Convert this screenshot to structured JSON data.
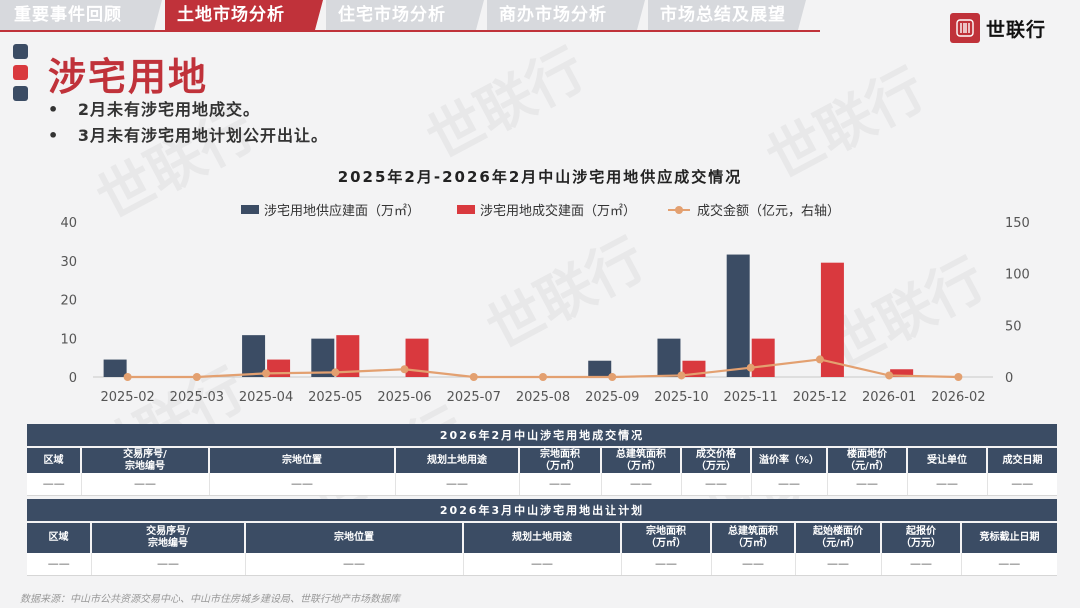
{
  "nav": {
    "tabs": [
      {
        "label": "重要事件回顾",
        "active": false
      },
      {
        "label": "土地市场分析",
        "active": true
      },
      {
        "label": "住宅市场分析",
        "active": false
      },
      {
        "label": "商办市场分析",
        "active": false
      },
      {
        "label": "市场总结及展望",
        "active": false
      }
    ],
    "accent_color": "#c0323a",
    "inactive_color": "#d7d9dd"
  },
  "logo": {
    "text": "世联行",
    "icon": "logo-seal-icon"
  },
  "watermark": {
    "text": "世联行"
  },
  "heading": {
    "title": "涉宅用地",
    "bullets": [
      "2月未有涉宅用地成交。",
      "3月未有涉宅用地计划公开出让。"
    ],
    "bullet_mark": "•"
  },
  "chart_data": {
    "type": "bar",
    "title": "2025年2月-2026年2月中山涉宅用地供应成交情况",
    "categories": [
      "2025-02",
      "2025-03",
      "2025-04",
      "2025-05",
      "2025-06",
      "2025-07",
      "2025-08",
      "2025-09",
      "2025-10",
      "2025-11",
      "2025-12",
      "2026-01",
      "2026-02"
    ],
    "series": [
      {
        "name": "涉宅用地供应建面（万㎡）",
        "kind": "bar",
        "axis": "left",
        "color": "#3b4c64",
        "values": [
          4.5,
          0,
          10.8,
          9.9,
          0,
          0,
          0,
          4.2,
          9.9,
          31.6,
          0,
          0,
          0
        ]
      },
      {
        "name": "涉宅用地成交建面（万㎡）",
        "kind": "bar",
        "axis": "left",
        "color": "#d9393e",
        "values": [
          0,
          0,
          4.5,
          10.8,
          9.9,
          0,
          0,
          0,
          4.2,
          9.9,
          29.5,
          2.0,
          0
        ]
      },
      {
        "name": "成交金额（亿元，右轴）",
        "kind": "line",
        "axis": "right",
        "color": "#e3a070",
        "values": [
          0,
          0,
          3.5,
          4.5,
          7.5,
          0,
          0,
          0,
          1.5,
          9,
          17,
          1.5,
          0
        ]
      }
    ],
    "y_left": {
      "min": 0,
      "max": 40,
      "ticks": [
        0,
        10,
        20,
        30,
        40
      ]
    },
    "y_right": {
      "min": 0,
      "max": 150,
      "ticks": [
        0,
        50,
        100,
        150
      ]
    },
    "legend": "top-center",
    "grid": false
  },
  "table1": {
    "caption": "2026年2月中山涉宅用地成交情况",
    "headers": [
      [
        "区域"
      ],
      [
        "交易序号/",
        "宗地编号"
      ],
      [
        "宗地位置"
      ],
      [
        "规划土地用途"
      ],
      [
        "宗地面积",
        "（万㎡）"
      ],
      [
        "总建筑面积",
        "（万㎡）"
      ],
      [
        "成交价格",
        "（万元）"
      ],
      [
        "溢价率（%）"
      ],
      [
        "楼面地价",
        "（元/㎡）"
      ],
      [
        "受让单位"
      ],
      [
        "成交日期"
      ]
    ],
    "rows": [
      [
        "——",
        "——",
        "——",
        "——",
        "——",
        "——",
        "——",
        "——",
        "——",
        "——",
        "——"
      ]
    ]
  },
  "table2": {
    "caption": "2026年3月中山涉宅用地出让计划",
    "headers": [
      [
        "区域"
      ],
      [
        "交易序号/",
        "宗地编号"
      ],
      [
        "宗地位置"
      ],
      [
        "规划土地用途"
      ],
      [
        "宗地面积",
        "（万㎡）"
      ],
      [
        "总建筑面积",
        "（万㎡）"
      ],
      [
        "起始楼面价",
        "（元/㎡）"
      ],
      [
        "起报价",
        "（万元）"
      ],
      [
        "竞标截止日期"
      ]
    ],
    "rows": [
      [
        "——",
        "——",
        "——",
        "——",
        "——",
        "——",
        "——",
        "——",
        "——"
      ]
    ]
  },
  "footer": {
    "source": "数据来源：中山市公共资源交易中心、中山市住房城乡建设局、世联行地产市场数据库"
  }
}
